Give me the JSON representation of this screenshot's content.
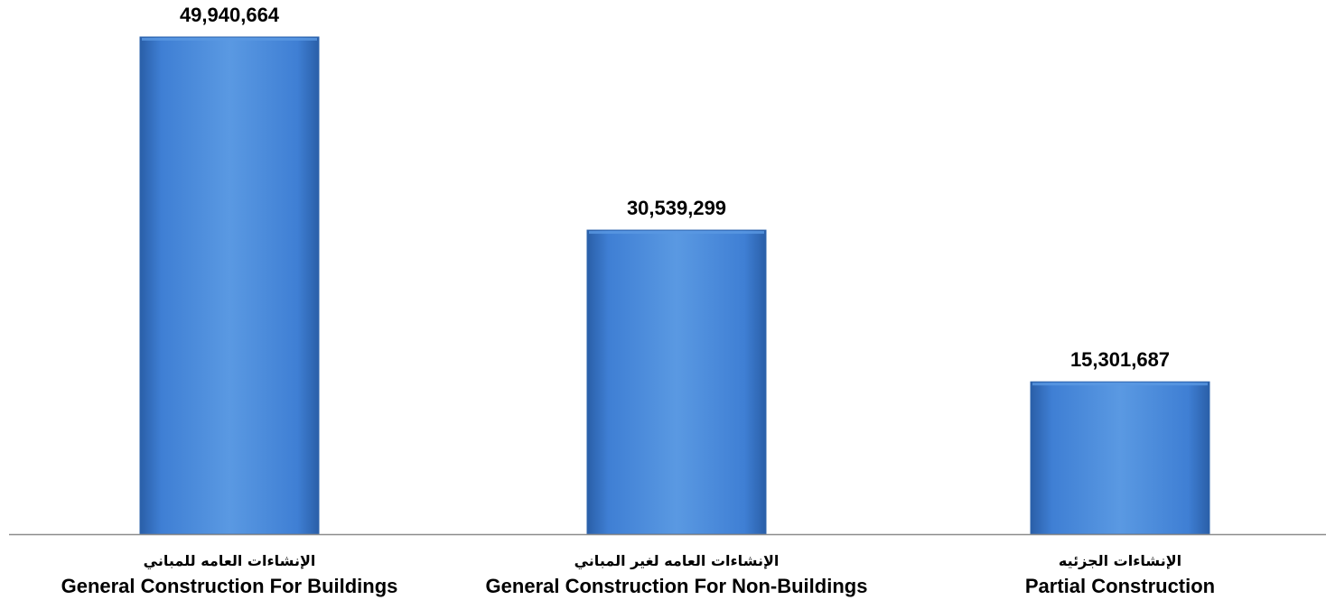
{
  "chart_data": {
    "type": "bar",
    "categories": [
      {
        "ar": "الإنشاءات العامه للمباني",
        "en": "General Construction For Buildings"
      },
      {
        "ar": "الإنشاءات العامه لغير المباني",
        "en": "General Construction For Non-Buildings"
      },
      {
        "ar": "الإنشاءات الجزئيه",
        "en": "Partial Construction"
      }
    ],
    "values": [
      49940664,
      30539299,
      15301687
    ],
    "data_labels": [
      "49,940,664",
      "30,539,299",
      "15,301,687"
    ],
    "ylim": [
      0,
      52000000
    ],
    "grid": false,
    "legend": "none",
    "colors": {
      "bar_fill": "#3f7fd4",
      "bar_light": "#5a99e2",
      "bar_dark": "#2a5fa8",
      "bar_border": "#2e64ad",
      "axis": "#8c8c8c"
    }
  }
}
